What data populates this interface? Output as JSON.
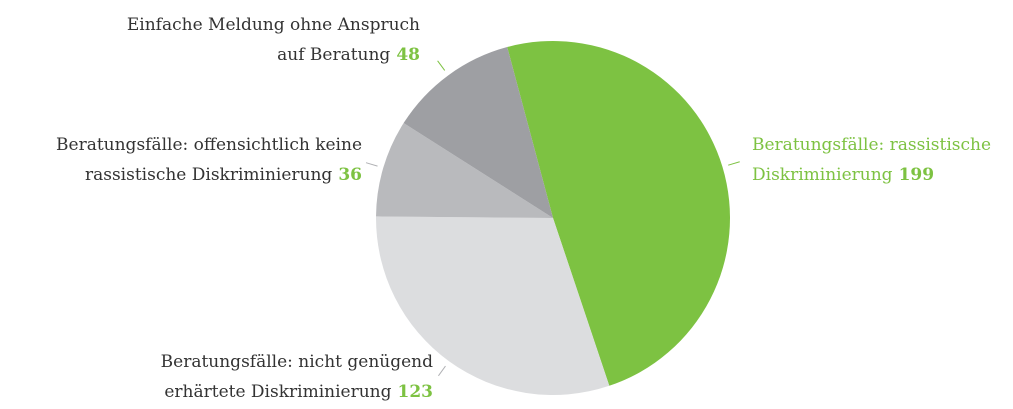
{
  "chart_data": {
    "type": "pie",
    "categories": [
      [
        "Beratungsfälle: rassistische",
        "Diskriminierung"
      ],
      [
        "Beratungsfälle: nicht genügend",
        "erhärtete Diskriminierung"
      ],
      [
        "Beratungsfälle: offensichtlich keine",
        "rassistische Diskriminierung"
      ],
      [
        "Einfache Meldung ohne Anspruch",
        "auf Beratung"
      ]
    ],
    "values": [
      199,
      123,
      36,
      48
    ],
    "colors": [
      "#7dc242",
      "#dcdddf",
      "#b9babd",
      "#9e9fa3"
    ],
    "label_colors": [
      "#7dc242",
      "#333333",
      "#333333",
      "#333333"
    ]
  }
}
